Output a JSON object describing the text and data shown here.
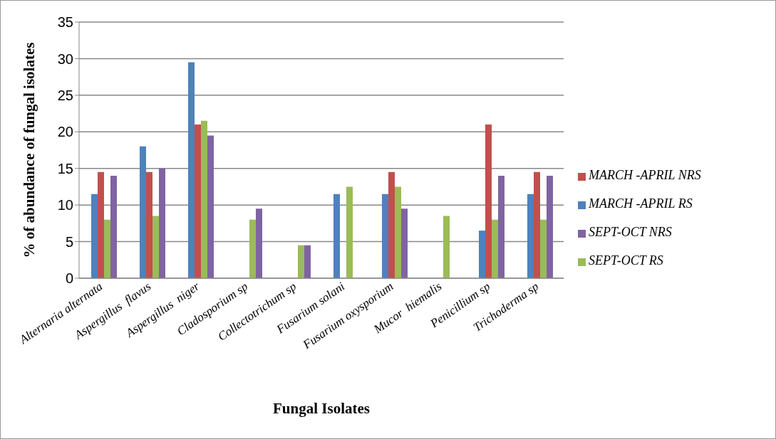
{
  "chart_data": {
    "type": "bar",
    "xlabel": "Fungal Isolates",
    "ylabel": "% of abundance of fungal isolates",
    "categories": [
      "Alternaria alternata",
      "Aspergillus  flavus",
      "Aspergillus  niger",
      "Cladosporium sp",
      "Collectotrichum sp",
      "Fusarium solani",
      "Fusarium oxysporium",
      "Mucor  hiemalis",
      "Penicillium sp",
      "Trichoderma sp"
    ],
    "series": [
      {
        "name": "MARCH -APRIL RS",
        "color": "#4f81bd",
        "values": [
          11.5,
          18,
          29.5,
          0,
          0,
          11.5,
          11.5,
          0,
          6.5,
          11.5
        ]
      },
      {
        "name": "MARCH -APRIL NRS",
        "color": "#c0504d",
        "values": [
          14.5,
          14.5,
          21,
          0,
          0,
          0,
          14.5,
          0,
          21,
          14.5
        ]
      },
      {
        "name": "SEPT-OCT RS",
        "color": "#9bbb59",
        "values": [
          8,
          8.5,
          21.5,
          8,
          4.5,
          12.5,
          12.5,
          8.5,
          8,
          8
        ]
      },
      {
        "name": "SEPT-OCT NRS",
        "color": "#8064a2",
        "values": [
          14,
          15,
          19.5,
          9.5,
          4.5,
          0,
          9.5,
          0,
          14,
          14
        ]
      }
    ],
    "ylim": [
      0,
      35
    ],
    "yticks": [
      0,
      5,
      10,
      15,
      20,
      25,
      30,
      35
    ],
    "grid": "y",
    "legend": "right"
  }
}
